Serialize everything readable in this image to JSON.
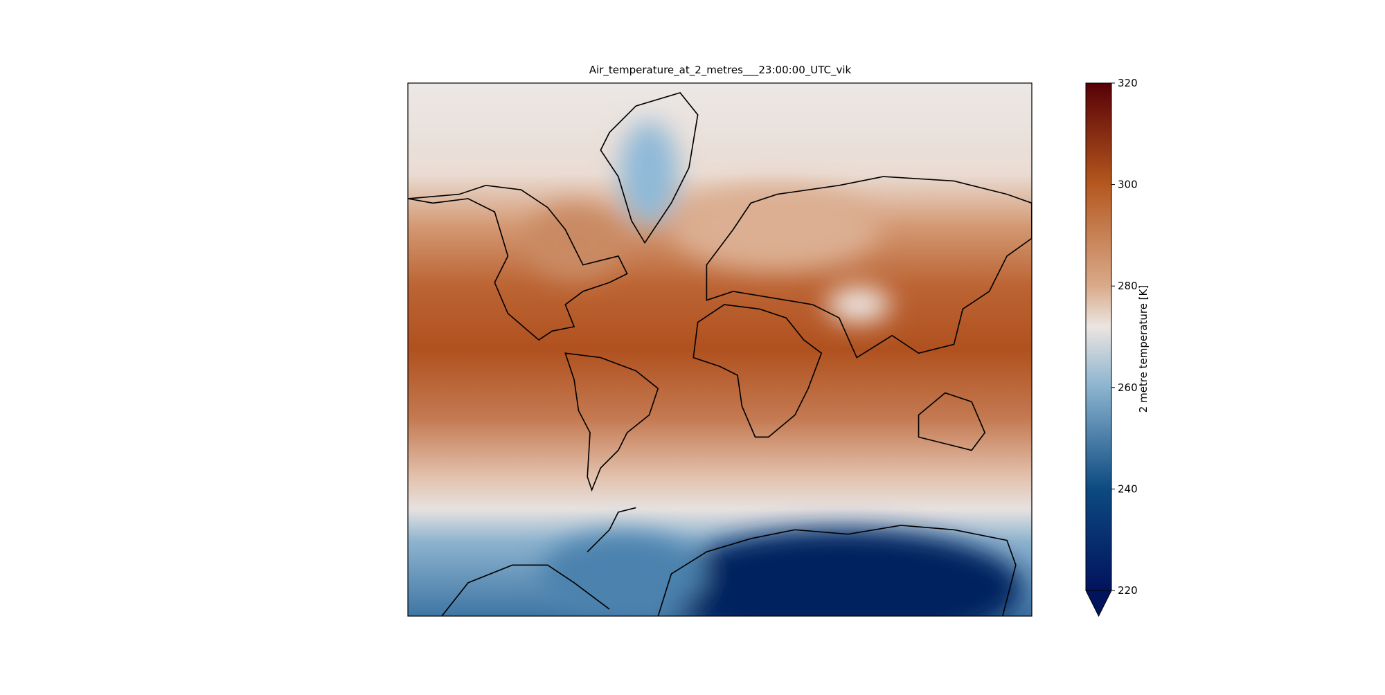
{
  "chart_data": {
    "type": "map",
    "title": "Air_temperature_at_2_metres___23:00:00_UTC_vik",
    "colorbar": {
      "label": "2 metre temperature [K]",
      "lim": [
        220,
        320
      ],
      "ticks": [
        220,
        240,
        260,
        280,
        300,
        320
      ],
      "extend": "min"
    }
  }
}
